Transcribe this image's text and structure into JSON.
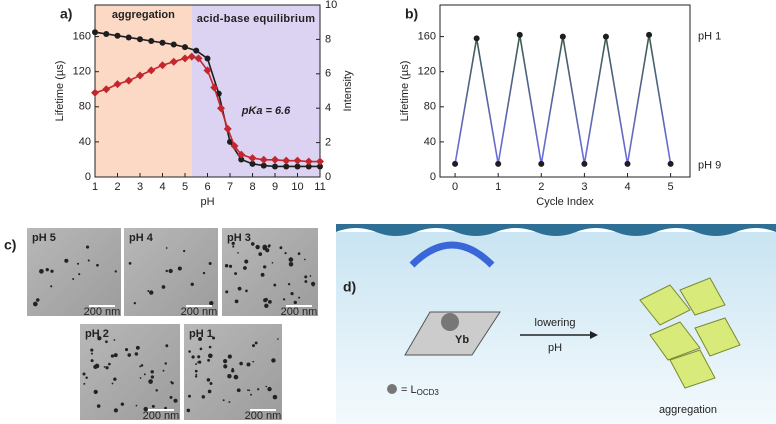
{
  "chart_data": [
    {
      "type": "line",
      "panel": "a)",
      "xlabel": "pH",
      "ylabel": "Lifetime (µs)",
      "y2label": "Intensity",
      "xlim": [
        1,
        11
      ],
      "xticks": [
        1,
        2,
        3,
        4,
        5,
        6,
        7,
        8,
        9,
        10,
        11
      ],
      "ylim": [
        0,
        196
      ],
      "yticks": [
        0,
        40,
        80,
        120,
        160
      ],
      "y2lim": [
        0,
        10
      ],
      "y2ticks": [
        0,
        2,
        4,
        6,
        8,
        10
      ],
      "regions": [
        {
          "label": "aggregation",
          "xlim": [
            1,
            5.3
          ],
          "color": "#fbd9c4",
          "text_color": "#f07a35"
        },
        {
          "label": "acid-base equilibrium",
          "xlim": [
            5.3,
            11
          ],
          "color": "#dcd3f2",
          "text_color": "#5b55c9"
        }
      ],
      "annotation": "pKa = 6.6",
      "series": [
        {
          "name": "Lifetime",
          "color": "#1e1e1e",
          "marker": "circle",
          "x": [
            1,
            1.5,
            2,
            2.5,
            3,
            3.5,
            4,
            4.5,
            5,
            5.5,
            6,
            6.5,
            7,
            7.5,
            8,
            8.5,
            9,
            9.5,
            10,
            10.5,
            11
          ],
          "values": [
            165,
            163,
            161,
            159,
            157,
            155,
            153,
            151,
            148,
            144,
            135,
            95,
            40,
            20,
            15,
            13,
            12,
            12,
            12,
            12,
            12
          ]
        },
        {
          "name": "Intensity",
          "color": "#c4262e",
          "marker": "diamond",
          "axis": "y2",
          "x": [
            1,
            1.5,
            2,
            2.5,
            3,
            3.5,
            4,
            4.5,
            5,
            5.3,
            5.6,
            6,
            6.3,
            6.6,
            6.9,
            7.2,
            7.5,
            8,
            8.5,
            9,
            9.5,
            10,
            10.5,
            11
          ],
          "values": [
            4.9,
            5.1,
            5.4,
            5.6,
            5.9,
            6.2,
            6.5,
            6.7,
            6.9,
            7.0,
            6.9,
            6.2,
            5.2,
            4.0,
            2.8,
            1.8,
            1.3,
            1.1,
            1.0,
            1.0,
            0.95,
            0.95,
            0.9,
            0.9
          ]
        }
      ]
    },
    {
      "type": "line",
      "panel": "b)",
      "xlabel": "Cycle Index",
      "ylabel": "Lifetime (µs)",
      "xlim": [
        -0.35,
        5.45
      ],
      "xticks": [
        0,
        1,
        2,
        3,
        4,
        5
      ],
      "ylim": [
        0,
        196
      ],
      "yticks": [
        0,
        40,
        80,
        120,
        160
      ],
      "top_label": "pH 1",
      "bottom_label": "pH 9",
      "series": [
        {
          "name": "Lifetime",
          "color": "#1e1e1e",
          "gradient": [
            "#3c5c4e",
            "#6c6fe2"
          ],
          "x": [
            0,
            0.5,
            1,
            1.5,
            2,
            2.5,
            3,
            3.5,
            4,
            4.5,
            5
          ],
          "values": [
            15,
            158,
            15,
            162,
            15,
            160,
            15,
            160,
            15,
            162,
            15
          ]
        }
      ]
    }
  ],
  "micrographs": {
    "panel": "c)",
    "scale": "200 nm",
    "labels": [
      "pH 5",
      "pH 4",
      "pH 3",
      "pH 2",
      "pH 1"
    ]
  },
  "diagram": {
    "panel": "d)",
    "metal": "Yb",
    "arrow_label": [
      "lowering",
      "pH"
    ],
    "result": "aggregation",
    "ligand": "= L",
    "ligand_sub": "OCD3"
  }
}
